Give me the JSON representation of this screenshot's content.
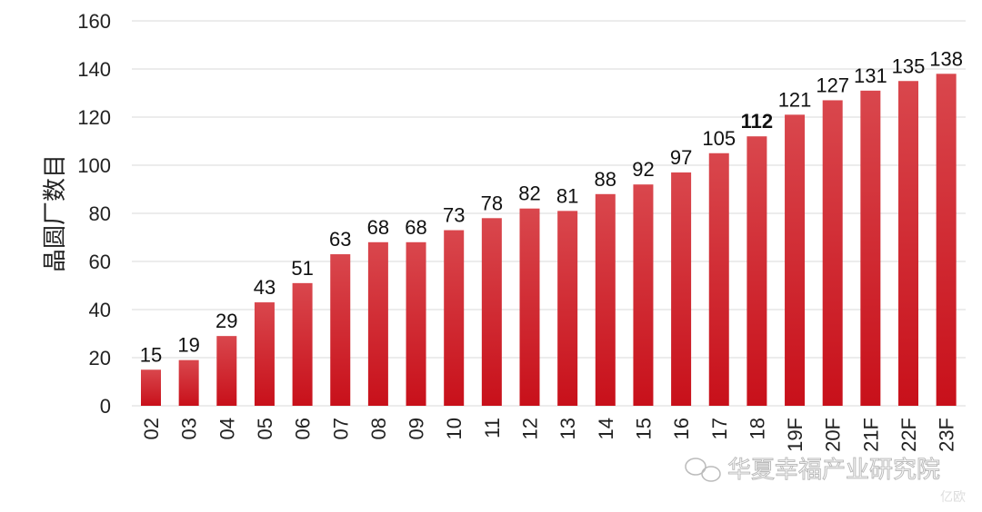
{
  "chart_data": {
    "type": "bar",
    "title": "",
    "xlabel": "",
    "ylabel": "晶圆厂数目",
    "ylim": [
      0,
      160
    ],
    "yticks": [
      0,
      20,
      40,
      60,
      80,
      100,
      120,
      140,
      160
    ],
    "grid": true,
    "categories": [
      "02",
      "03",
      "04",
      "05",
      "06",
      "07",
      "08",
      "09",
      "10",
      "11",
      "12",
      "13",
      "14",
      "15",
      "16",
      "17",
      "18",
      "19F",
      "20F",
      "21F",
      "22F",
      "23F"
    ],
    "values": [
      15,
      19,
      29,
      43,
      51,
      63,
      68,
      68,
      73,
      78,
      82,
      81,
      88,
      92,
      97,
      105,
      112,
      121,
      127,
      131,
      135,
      138
    ],
    "highlighted_label": "18",
    "bar_color": "#c8101a",
    "bar_color_light": "#d9474d",
    "grid_color": "#d9d9d9"
  },
  "watermark": {
    "text": "华夏幸福产业研究院",
    "icon": "wechat-icon",
    "corner_text": "亿欧"
  }
}
